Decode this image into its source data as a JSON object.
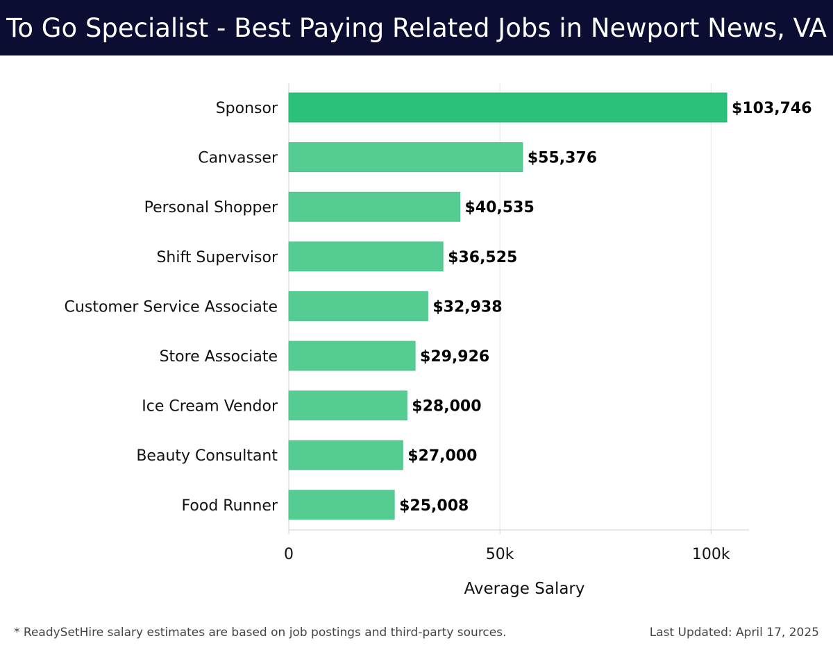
{
  "header": {
    "title": "To Go Specialist - Best Paying Related Jobs in Newport News, VA"
  },
  "footer": {
    "note": "* ReadySetHire salary estimates are based on job postings and third-party sources.",
    "updated": "Last Updated: April 17, 2025"
  },
  "colors": {
    "header_bg": "#0b0d33",
    "top_bar": "#2cc17a",
    "bar": "#55cc92",
    "grid": "#e3e3e3"
  },
  "chart_data": {
    "type": "bar",
    "orientation": "horizontal",
    "categories": [
      "Sponsor",
      "Canvasser",
      "Personal Shopper",
      "Shift Supervisor",
      "Customer Service Associate",
      "Store Associate",
      "Ice Cream Vendor",
      "Beauty Consultant",
      "Food Runner"
    ],
    "values": [
      103746,
      55376,
      40535,
      36525,
      32938,
      29926,
      28000,
      27000,
      25008
    ],
    "value_labels": [
      "$103,746",
      "$55,376",
      "$40,535",
      "$36,525",
      "$32,938",
      "$29,926",
      "$28,000",
      "$27,000",
      "$25,008"
    ],
    "xlabel": "Average Salary",
    "ylabel": "",
    "xlim": [
      0,
      109000
    ],
    "xticks": [
      0,
      50000,
      100000
    ],
    "xtick_labels": [
      "0",
      "50k",
      "100k"
    ],
    "grid": "vertical"
  }
}
